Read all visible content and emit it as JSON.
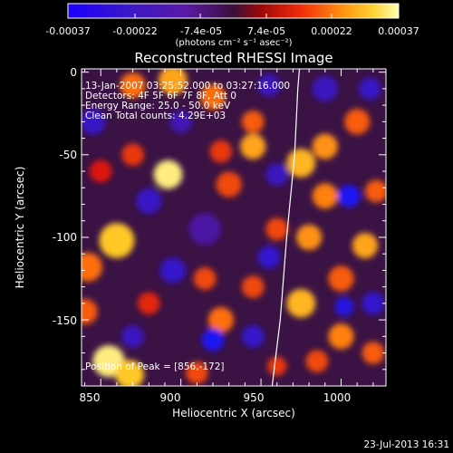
{
  "colorbar": {
    "ticks": [
      "-0.00037",
      "-0.00022",
      "-7.4e-05",
      "7.4e-05",
      "0.00022",
      "0.00037"
    ],
    "tick_values": [
      -0.00037,
      -0.00022,
      -7.4e-05,
      7.4e-05,
      0.00022,
      0.00037
    ],
    "range": [
      -0.00037,
      0.00037
    ],
    "units_label": "(photons cm⁻² s⁻¹ asec⁻²)"
  },
  "chart_data": {
    "type": "heatmap",
    "title": "Reconstructed RHESSI Image",
    "xlabel": "Heliocentric X (arcsec)",
    "ylabel": "Heliocentric Y (arcsec)",
    "xlim": [
      838,
      1028
    ],
    "ylim": [
      -190,
      2
    ],
    "xticks": [
      850,
      900,
      950,
      1000
    ],
    "yticks": [
      0,
      -50,
      -100,
      -150
    ],
    "peak_position": [
      856,
      -172
    ],
    "limb_curve": [
      [
        957,
        -190
      ],
      [
        962,
        -150
      ],
      [
        966,
        -100
      ],
      [
        971,
        -50
      ],
      [
        973,
        -10
      ],
      [
        974,
        2
      ]
    ],
    "annotations": [
      "13-Jan-2007 03:25:52.000 to 03:27:16.000",
      "Detectors: 4F 5F 6F 7F 8F, Att 0",
      "Energy Range: 25.0 - 50.0 keV",
      "Clean    Total counts: 4.29E+03"
    ],
    "peak_label": "Position of Peak = [856,-172]",
    "blobs": [
      {
        "x": 855,
        "y": -175,
        "v": 0.95,
        "r": 10
      },
      {
        "x": 868,
        "y": -183,
        "v": 0.85,
        "r": 9
      },
      {
        "x": 892,
        "y": -62,
        "v": 0.95,
        "r": 9
      },
      {
        "x": 860,
        "y": -102,
        "v": 0.85,
        "r": 11
      },
      {
        "x": 842,
        "y": -118,
        "v": 0.6,
        "r": 9
      },
      {
        "x": 870,
        "y": -8,
        "v": 0.6,
        "r": 8
      },
      {
        "x": 895,
        "y": -5,
        "v": 0.75,
        "r": 9
      },
      {
        "x": 920,
        "y": -15,
        "v": 0.6,
        "r": 8
      },
      {
        "x": 945,
        "y": -30,
        "v": 0.55,
        "r": 7
      },
      {
        "x": 945,
        "y": -45,
        "v": 0.75,
        "r": 8
      },
      {
        "x": 925,
        "y": -48,
        "v": 0.45,
        "r": 7
      },
      {
        "x": 930,
        "y": -68,
        "v": 0.5,
        "r": 8
      },
      {
        "x": 975,
        "y": -55,
        "v": 0.8,
        "r": 9
      },
      {
        "x": 990,
        "y": -45,
        "v": 0.7,
        "r": 8
      },
      {
        "x": 1010,
        "y": -30,
        "v": 0.55,
        "r": 8
      },
      {
        "x": 990,
        "y": -75,
        "v": 0.65,
        "r": 8
      },
      {
        "x": 980,
        "y": -100,
        "v": 0.7,
        "r": 8
      },
      {
        "x": 1015,
        "y": -105,
        "v": 0.75,
        "r": 8
      },
      {
        "x": 960,
        "y": -95,
        "v": 0.5,
        "r": 7
      },
      {
        "x": 1000,
        "y": -125,
        "v": 0.55,
        "r": 8
      },
      {
        "x": 975,
        "y": -140,
        "v": 0.8,
        "r": 9
      },
      {
        "x": 945,
        "y": -130,
        "v": 0.5,
        "r": 7
      },
      {
        "x": 925,
        "y": -150,
        "v": 0.6,
        "r": 8
      },
      {
        "x": 915,
        "y": -125,
        "v": 0.5,
        "r": 7
      },
      {
        "x": 1000,
        "y": -160,
        "v": 0.65,
        "r": 8
      },
      {
        "x": 1020,
        "y": -170,
        "v": 0.55,
        "r": 7
      },
      {
        "x": 985,
        "y": -175,
        "v": 0.5,
        "r": 7
      },
      {
        "x": 960,
        "y": -178,
        "v": 0.45,
        "r": 6
      },
      {
        "x": 910,
        "y": -182,
        "v": 0.5,
        "r": 7
      },
      {
        "x": 840,
        "y": -145,
        "v": 0.55,
        "r": 8
      },
      {
        "x": 880,
        "y": -140,
        "v": 0.4,
        "r": 7
      },
      {
        "x": 870,
        "y": -50,
        "v": 0.45,
        "r": 7
      },
      {
        "x": 850,
        "y": -60,
        "v": 0.35,
        "r": 7
      },
      {
        "x": 1022,
        "y": -72,
        "v": 0.55,
        "r": 7
      },
      {
        "x": 915,
        "y": -95,
        "v": -0.2,
        "r": 10
      },
      {
        "x": 1005,
        "y": -75,
        "v": -0.9,
        "r": 7
      },
      {
        "x": 920,
        "y": -162,
        "v": -0.9,
        "r": 7
      },
      {
        "x": 1002,
        "y": -142,
        "v": -0.75,
        "r": 6
      },
      {
        "x": 955,
        "y": -112,
        "v": -0.6,
        "r": 7
      },
      {
        "x": 880,
        "y": -78,
        "v": -0.5,
        "r": 8
      },
      {
        "x": 945,
        "y": -160,
        "v": -0.55,
        "r": 7
      },
      {
        "x": 895,
        "y": -120,
        "v": -0.55,
        "r": 8
      },
      {
        "x": 1020,
        "y": -140,
        "v": -0.6,
        "r": 7
      },
      {
        "x": 990,
        "y": -10,
        "v": -0.45,
        "r": 8
      },
      {
        "x": 955,
        "y": -8,
        "v": -0.45,
        "r": 7
      },
      {
        "x": 845,
        "y": -30,
        "v": -0.5,
        "r": 8
      },
      {
        "x": 960,
        "y": -62,
        "v": -0.45,
        "r": 7
      },
      {
        "x": 870,
        "y": -160,
        "v": -0.45,
        "r": 7
      },
      {
        "x": 1018,
        "y": -10,
        "v": -0.5,
        "r": 7
      },
      {
        "x": 900,
        "y": -30,
        "v": -0.35,
        "r": 7
      }
    ]
  },
  "footer": {
    "date": "23-Jul-2013 16:31"
  }
}
